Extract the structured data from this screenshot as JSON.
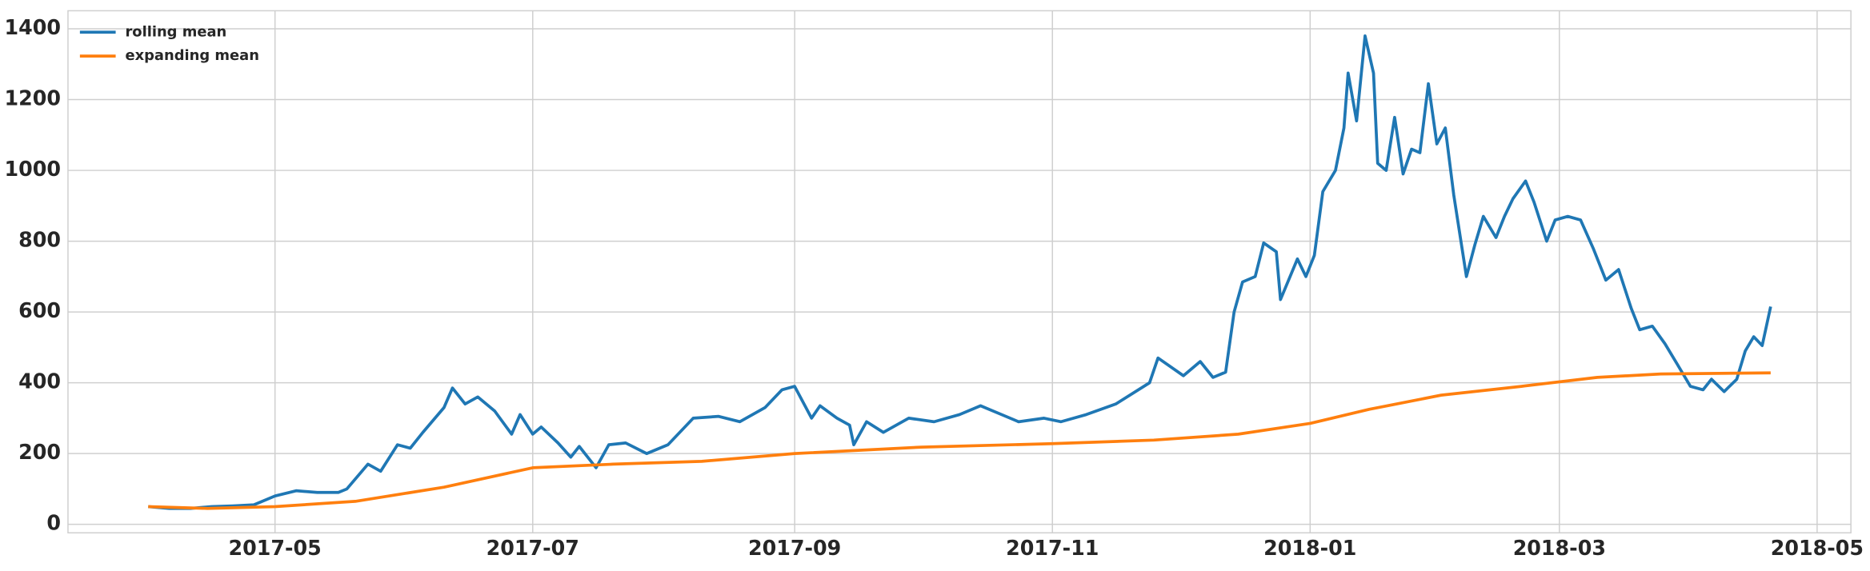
{
  "chart_data": {
    "type": "line",
    "xlim": [
      "2017-03-13",
      "2018-05-09"
    ],
    "ylim": [
      -24,
      1451
    ],
    "xticks": [
      {
        "value": "2017-05-01",
        "label": "2017-05"
      },
      {
        "value": "2017-07-01",
        "label": "2017-07"
      },
      {
        "value": "2017-09-01",
        "label": "2017-09"
      },
      {
        "value": "2017-11-01",
        "label": "2017-11"
      },
      {
        "value": "2018-01-01",
        "label": "2018-01"
      },
      {
        "value": "2018-03-01",
        "label": "2018-03"
      },
      {
        "value": "2018-05-01",
        "label": "2018-05"
      }
    ],
    "yticks": [
      0,
      200,
      400,
      600,
      800,
      1000,
      1200,
      1400
    ],
    "grid": true,
    "legend": "upper left",
    "series": [
      {
        "name": "rolling mean",
        "color": "#1f77b4",
        "x": [
          "2017-04-01",
          "2017-04-06",
          "2017-04-11",
          "2017-04-16",
          "2017-04-21",
          "2017-04-26",
          "2017-05-01",
          "2017-05-06",
          "2017-05-11",
          "2017-05-16",
          "2017-05-18",
          "2017-05-23",
          "2017-05-26",
          "2017-05-30",
          "2017-06-02",
          "2017-06-05",
          "2017-06-10",
          "2017-06-12",
          "2017-06-15",
          "2017-06-18",
          "2017-06-22",
          "2017-06-26",
          "2017-06-28",
          "2017-07-01",
          "2017-07-03",
          "2017-07-07",
          "2017-07-10",
          "2017-07-12",
          "2017-07-16",
          "2017-07-19",
          "2017-07-23",
          "2017-07-28",
          "2017-08-02",
          "2017-08-08",
          "2017-08-14",
          "2017-08-19",
          "2017-08-25",
          "2017-08-29",
          "2017-09-01",
          "2017-09-05",
          "2017-09-07",
          "2017-09-11",
          "2017-09-14",
          "2017-09-15",
          "2017-09-18",
          "2017-09-22",
          "2017-09-28",
          "2017-10-04",
          "2017-10-10",
          "2017-10-15",
          "2017-10-20",
          "2017-10-24",
          "2017-10-30",
          "2017-11-03",
          "2017-11-09",
          "2017-11-16",
          "2017-11-24",
          "2017-11-26",
          "2017-12-02",
          "2017-12-06",
          "2017-12-09",
          "2017-12-12",
          "2017-12-14",
          "2017-12-16",
          "2017-12-19",
          "2017-12-21",
          "2017-12-24",
          "2017-12-25",
          "2017-12-29",
          "2017-12-31",
          "2018-01-02",
          "2018-01-04",
          "2018-01-07",
          "2018-01-09",
          "2018-01-10",
          "2018-01-12",
          "2018-01-14",
          "2018-01-16",
          "2018-01-17",
          "2018-01-19",
          "2018-01-21",
          "2018-01-23",
          "2018-01-25",
          "2018-01-27",
          "2018-01-29",
          "2018-01-31",
          "2018-02-02",
          "2018-02-04",
          "2018-02-07",
          "2018-02-09",
          "2018-02-11",
          "2018-02-14",
          "2018-02-16",
          "2018-02-18",
          "2018-02-21",
          "2018-02-23",
          "2018-02-26",
          "2018-02-28",
          "2018-03-03",
          "2018-03-06",
          "2018-03-09",
          "2018-03-12",
          "2018-03-15",
          "2018-03-18",
          "2018-03-20",
          "2018-03-23",
          "2018-03-26",
          "2018-03-29",
          "2018-04-01",
          "2018-04-04",
          "2018-04-06",
          "2018-04-09",
          "2018-04-12",
          "2018-04-14",
          "2018-04-16",
          "2018-04-18",
          "2018-04-20"
        ],
        "values": [
          50,
          45,
          45,
          50,
          52,
          55,
          80,
          95,
          90,
          90,
          100,
          170,
          150,
          225,
          215,
          260,
          330,
          385,
          340,
          360,
          320,
          255,
          310,
          255,
          275,
          230,
          190,
          220,
          160,
          225,
          230,
          200,
          225,
          300,
          305,
          290,
          330,
          380,
          390,
          300,
          335,
          300,
          280,
          225,
          290,
          260,
          300,
          290,
          310,
          335,
          310,
          290,
          300,
          290,
          310,
          340,
          400,
          470,
          420,
          460,
          415,
          430,
          600,
          685,
          700,
          795,
          770,
          635,
          750,
          700,
          760,
          940,
          1000,
          1120,
          1275,
          1140,
          1380,
          1275,
          1020,
          1000,
          1150,
          990,
          1060,
          1050,
          1245,
          1075,
          1120,
          930,
          700,
          790,
          870,
          810,
          870,
          920,
          970,
          910,
          800,
          860,
          870,
          860,
          780,
          690,
          720,
          610,
          550,
          560,
          510,
          450,
          390,
          380,
          410,
          375,
          410,
          490,
          530,
          505,
          615
        ]
      },
      {
        "name": "expanding mean",
        "color": "#ff7f0e",
        "x": [
          "2017-04-01",
          "2017-04-15",
          "2017-05-01",
          "2017-05-20",
          "2017-06-10",
          "2017-07-01",
          "2017-07-20",
          "2017-08-10",
          "2017-09-01",
          "2017-10-01",
          "2017-11-01",
          "2017-11-25",
          "2017-12-15",
          "2018-01-01",
          "2018-01-15",
          "2018-02-01",
          "2018-02-20",
          "2018-03-10",
          "2018-03-25",
          "2018-04-20"
        ],
        "values": [
          50,
          45,
          50,
          65,
          105,
          160,
          170,
          178,
          200,
          218,
          228,
          238,
          255,
          285,
          325,
          365,
          390,
          415,
          425,
          428
        ]
      }
    ]
  }
}
